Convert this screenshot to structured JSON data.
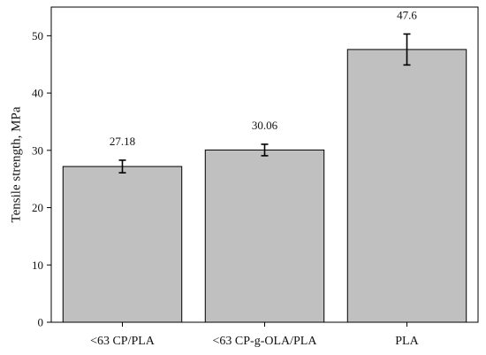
{
  "chart_data": {
    "type": "bar",
    "ylabel": "Tensile strength, MPa",
    "xlabel": "",
    "ylim": [
      0,
      55
    ],
    "yticks": [
      0,
      10,
      20,
      30,
      40,
      50
    ],
    "grid": false,
    "categories": [
      "<63 CP/PLA",
      "<63 CP-g-OLA/PLA",
      "PLA"
    ],
    "values": [
      27.18,
      30.06,
      47.6
    ],
    "value_labels": [
      "27.18",
      "30.06",
      "47.6"
    ],
    "errors": [
      1.1,
      1.0,
      2.7
    ],
    "colors": {
      "bar": "#c0c0c0",
      "bar_stroke": "#000000",
      "axis": "#000000"
    }
  }
}
